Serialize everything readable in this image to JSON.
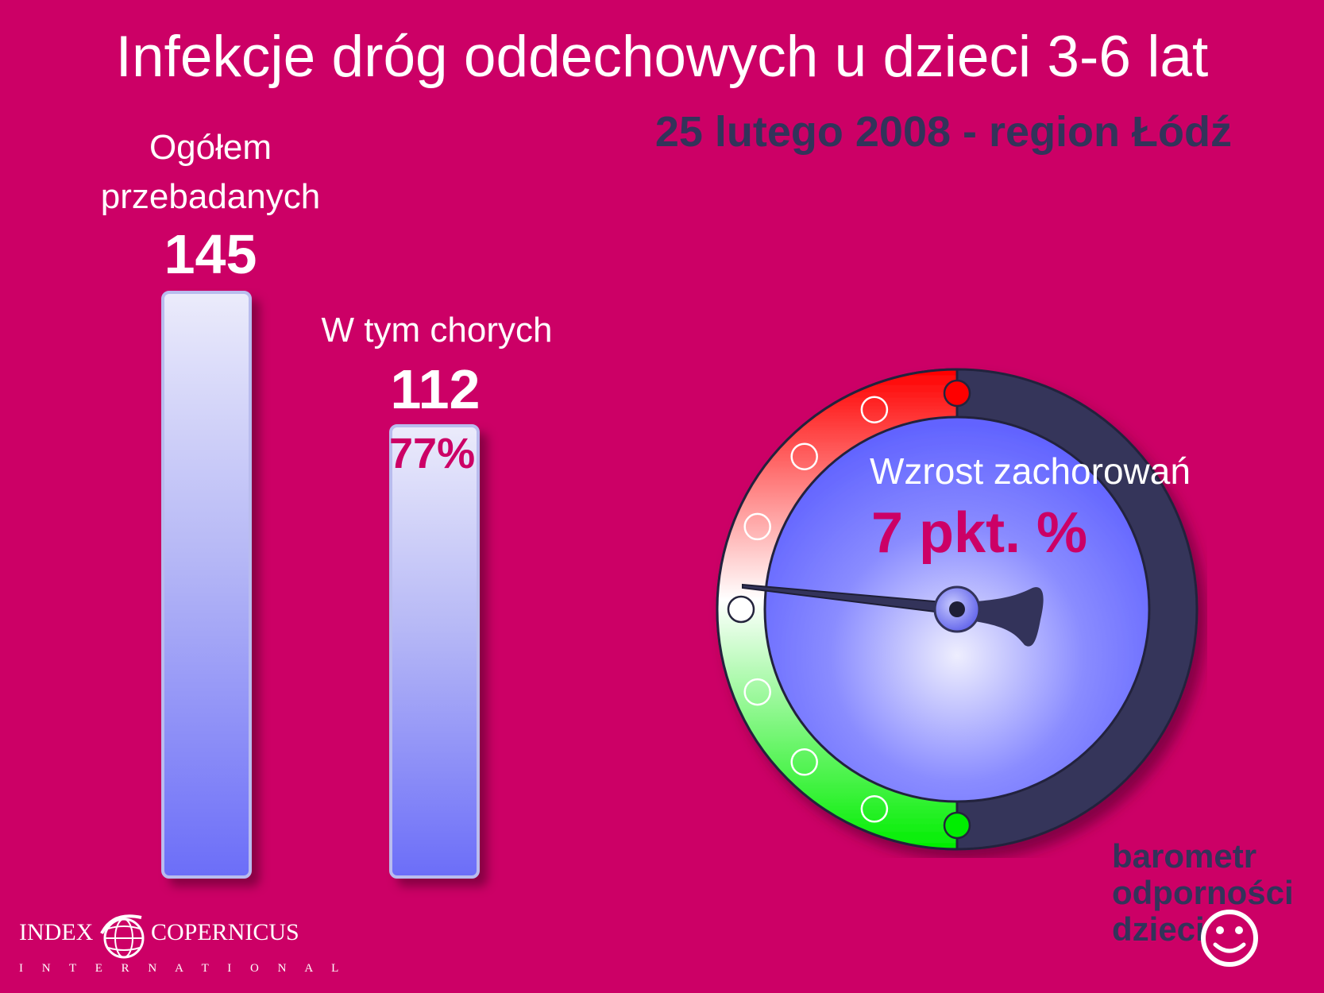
{
  "title": "Infekcje dróg oddechowych u dzieci 3-6 lat",
  "subtitle": "25 lutego 2008 - region Łódź",
  "chart_data": {
    "type": "bar",
    "categories": [
      "Ogółem przebadanych",
      "W tym chorych"
    ],
    "category_lines": [
      [
        "Ogółem",
        "przebadanych"
      ],
      [
        "W tym chorych"
      ]
    ],
    "values": [
      145,
      112
    ],
    "value_labels": [
      "145",
      "112"
    ],
    "percent_label": "77%",
    "percent_value": 77,
    "ylim": [
      0,
      145
    ],
    "grid": false,
    "legend": "none"
  },
  "gauge": {
    "caption": "Wzrost zachorowań",
    "value_label": "7 pkt. %",
    "value": 7,
    "colors": {
      "high": "#ff0000",
      "low": "#00ee00",
      "dial": "#6a6cff",
      "rim": "#35355a"
    }
  },
  "logos": {
    "index_copernicus": {
      "left": "INDEX",
      "right": "COPERNICUS",
      "sub": "I N T E R N A T I O N A L"
    },
    "barometr": [
      "barometr",
      "odporności",
      "dzieci"
    ]
  },
  "colors": {
    "background": "#cc0066",
    "accent": "#33335a",
    "bar_top": "#ebebfb",
    "bar_bottom": "#6c6ef8"
  }
}
